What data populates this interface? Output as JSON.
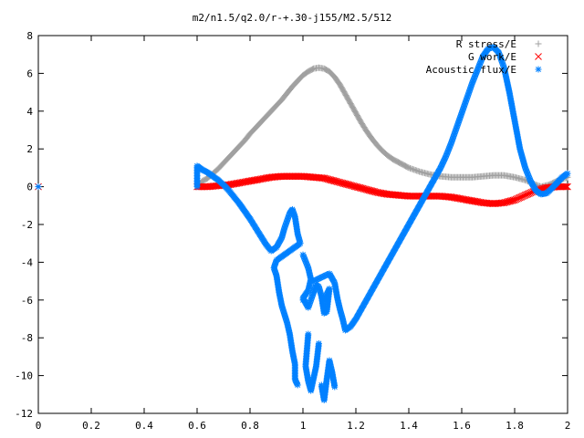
{
  "chart_data": {
    "type": "scatter",
    "title": "m2/n1.5/q2.0/r-+.30-j155/M2.5/512",
    "xlabel": "",
    "ylabel": "",
    "xlim": [
      0,
      2
    ],
    "ylim": [
      -12,
      8
    ],
    "xticks": [
      "0",
      "0.2",
      "0.4",
      "0.6",
      "0.8",
      "1",
      "1.2",
      "1.4",
      "1.6",
      "1.8",
      "2"
    ],
    "yticks": [
      "8",
      "6",
      "4",
      "2",
      "0",
      "-2",
      "-4",
      "-6",
      "-8",
      "-10",
      "-12"
    ],
    "grid": false,
    "legend_position": "top-right",
    "series": [
      {
        "name": "R stress/E",
        "marker": "+",
        "color": "#a0a0a0",
        "points": [
          [
            0.0,
            0.0
          ],
          [
            0.6,
            0.0
          ],
          [
            0.62,
            0.3
          ],
          [
            0.64,
            0.45
          ],
          [
            0.66,
            0.7
          ],
          [
            0.68,
            0.95
          ],
          [
            0.7,
            1.25
          ],
          [
            0.72,
            1.55
          ],
          [
            0.74,
            1.85
          ],
          [
            0.76,
            2.15
          ],
          [
            0.78,
            2.45
          ],
          [
            0.8,
            2.8
          ],
          [
            0.82,
            3.1
          ],
          [
            0.84,
            3.4
          ],
          [
            0.86,
            3.7
          ],
          [
            0.88,
            4.0
          ],
          [
            0.9,
            4.3
          ],
          [
            0.92,
            4.6
          ],
          [
            0.94,
            4.95
          ],
          [
            0.96,
            5.3
          ],
          [
            0.98,
            5.6
          ],
          [
            1.0,
            5.9
          ],
          [
            1.02,
            6.1
          ],
          [
            1.04,
            6.25
          ],
          [
            1.06,
            6.3
          ],
          [
            1.08,
            6.25
          ],
          [
            1.1,
            6.1
          ],
          [
            1.12,
            5.8
          ],
          [
            1.14,
            5.4
          ],
          [
            1.16,
            4.9
          ],
          [
            1.18,
            4.4
          ],
          [
            1.2,
            3.9
          ],
          [
            1.22,
            3.4
          ],
          [
            1.24,
            2.95
          ],
          [
            1.26,
            2.55
          ],
          [
            1.28,
            2.2
          ],
          [
            1.3,
            1.9
          ],
          [
            1.32,
            1.65
          ],
          [
            1.34,
            1.45
          ],
          [
            1.36,
            1.3
          ],
          [
            1.38,
            1.15
          ],
          [
            1.4,
            1.0
          ],
          [
            1.44,
            0.8
          ],
          [
            1.48,
            0.65
          ],
          [
            1.52,
            0.55
          ],
          [
            1.56,
            0.5
          ],
          [
            1.6,
            0.5
          ],
          [
            1.64,
            0.5
          ],
          [
            1.68,
            0.55
          ],
          [
            1.72,
            0.6
          ],
          [
            1.76,
            0.6
          ],
          [
            1.8,
            0.5
          ],
          [
            1.84,
            0.35
          ],
          [
            1.88,
            0.1
          ],
          [
            1.9,
            0.0
          ],
          [
            1.93,
            0.1
          ],
          [
            1.96,
            0.3
          ],
          [
            2.0,
            0.5
          ]
        ]
      },
      {
        "name": "G work/E",
        "marker": "x",
        "color": "#ff0000",
        "points": [
          [
            0.0,
            0.0
          ],
          [
            0.6,
            0.0
          ],
          [
            0.64,
            0.0
          ],
          [
            0.68,
            0.05
          ],
          [
            0.72,
            0.1
          ],
          [
            0.76,
            0.2
          ],
          [
            0.8,
            0.3
          ],
          [
            0.84,
            0.4
          ],
          [
            0.88,
            0.5
          ],
          [
            0.92,
            0.55
          ],
          [
            0.96,
            0.55
          ],
          [
            1.0,
            0.55
          ],
          [
            1.04,
            0.5
          ],
          [
            1.08,
            0.45
          ],
          [
            1.12,
            0.3
          ],
          [
            1.16,
            0.15
          ],
          [
            1.2,
            0.0
          ],
          [
            1.24,
            -0.15
          ],
          [
            1.28,
            -0.3
          ],
          [
            1.32,
            -0.4
          ],
          [
            1.36,
            -0.45
          ],
          [
            1.4,
            -0.5
          ],
          [
            1.44,
            -0.5
          ],
          [
            1.48,
            -0.5
          ],
          [
            1.52,
            -0.5
          ],
          [
            1.56,
            -0.55
          ],
          [
            1.6,
            -0.65
          ],
          [
            1.64,
            -0.75
          ],
          [
            1.68,
            -0.85
          ],
          [
            1.72,
            -0.9
          ],
          [
            1.76,
            -0.85
          ],
          [
            1.8,
            -0.7
          ],
          [
            1.84,
            -0.45
          ],
          [
            1.88,
            -0.2
          ],
          [
            1.92,
            -0.05
          ],
          [
            1.96,
            0.0
          ],
          [
            2.0,
            0.0
          ]
        ]
      },
      {
        "name": "Acoustic flux/E",
        "marker": "*",
        "color": "#0080ff",
        "points": [
          [
            0.0,
            0.0
          ],
          [
            0.6,
            0.0
          ],
          [
            0.6,
            1.1
          ],
          [
            0.62,
            0.9
          ],
          [
            0.64,
            0.75
          ],
          [
            0.66,
            0.55
          ],
          [
            0.68,
            0.35
          ],
          [
            0.7,
            0.1
          ],
          [
            0.72,
            -0.2
          ],
          [
            0.74,
            -0.55
          ],
          [
            0.76,
            -0.9
          ],
          [
            0.78,
            -1.3
          ],
          [
            0.8,
            -1.7
          ],
          [
            0.82,
            -2.15
          ],
          [
            0.84,
            -2.6
          ],
          [
            0.86,
            -3.05
          ],
          [
            0.88,
            -3.4
          ],
          [
            0.9,
            -3.2
          ],
          [
            0.92,
            -2.7
          ],
          [
            0.93,
            -2.2
          ],
          [
            0.95,
            -1.4
          ],
          [
            0.96,
            -1.2
          ],
          [
            0.97,
            -1.6
          ],
          [
            0.98,
            -2.5
          ],
          [
            0.99,
            -3.0
          ],
          [
            0.9,
            -3.9
          ],
          [
            0.89,
            -4.3
          ],
          [
            0.9,
            -4.7
          ],
          [
            0.91,
            -5.6
          ],
          [
            0.92,
            -6.3
          ],
          [
            0.94,
            -7.2
          ],
          [
            0.95,
            -7.8
          ],
          [
            0.96,
            -8.7
          ],
          [
            0.97,
            -9.4
          ],
          [
            0.97,
            -10.2
          ],
          [
            0.98,
            -10.5
          ],
          [
            1.0,
            -6.0
          ],
          [
            1.0,
            -3.6
          ],
          [
            1.02,
            -4.3
          ],
          [
            1.03,
            -4.9
          ],
          [
            1.02,
            -5.5
          ],
          [
            1.0,
            -5.9
          ],
          [
            1.02,
            -6.4
          ],
          [
            1.04,
            -5.6
          ],
          [
            1.05,
            -5.2
          ],
          [
            1.06,
            -5.3
          ],
          [
            1.07,
            -5.8
          ],
          [
            1.08,
            -6.7
          ],
          [
            1.09,
            -6.6
          ],
          [
            1.1,
            -5.4
          ],
          [
            1.08,
            -6.0
          ],
          [
            1.02,
            -7.8
          ],
          [
            1.01,
            -9.5
          ],
          [
            1.02,
            -10.3
          ],
          [
            1.03,
            -10.8
          ],
          [
            1.05,
            -9.5
          ],
          [
            1.06,
            -8.3
          ],
          [
            1.07,
            -10.5
          ],
          [
            1.08,
            -11.3
          ],
          [
            1.09,
            -10.2
          ],
          [
            1.1,
            -9.2
          ],
          [
            1.11,
            -9.8
          ],
          [
            1.12,
            -10.6
          ],
          [
            1.04,
            -5.0
          ],
          [
            1.1,
            -4.6
          ],
          [
            1.12,
            -5.1
          ],
          [
            1.13,
            -5.9
          ],
          [
            1.14,
            -6.5
          ],
          [
            1.15,
            -7.0
          ],
          [
            1.16,
            -7.6
          ],
          [
            1.18,
            -7.4
          ],
          [
            1.2,
            -7.0
          ],
          [
            1.22,
            -6.5
          ],
          [
            1.24,
            -6.0
          ],
          [
            1.26,
            -5.5
          ],
          [
            1.28,
            -5.0
          ],
          [
            1.3,
            -4.5
          ],
          [
            1.32,
            -4.0
          ],
          [
            1.34,
            -3.5
          ],
          [
            1.36,
            -3.0
          ],
          [
            1.38,
            -2.5
          ],
          [
            1.4,
            -2.0
          ],
          [
            1.42,
            -1.5
          ],
          [
            1.44,
            -1.0
          ],
          [
            1.46,
            -0.5
          ],
          [
            1.48,
            0.0
          ],
          [
            1.5,
            0.5
          ],
          [
            1.52,
            1.0
          ],
          [
            1.54,
            1.6
          ],
          [
            1.56,
            2.3
          ],
          [
            1.58,
            3.1
          ],
          [
            1.6,
            3.9
          ],
          [
            1.62,
            4.7
          ],
          [
            1.64,
            5.5
          ],
          [
            1.66,
            6.2
          ],
          [
            1.68,
            6.9
          ],
          [
            1.7,
            7.3
          ],
          [
            1.72,
            7.4
          ],
          [
            1.74,
            7.1
          ],
          [
            1.76,
            6.3
          ],
          [
            1.78,
            5.0
          ],
          [
            1.8,
            3.5
          ],
          [
            1.82,
            2.0
          ],
          [
            1.84,
            1.0
          ],
          [
            1.86,
            0.3
          ],
          [
            1.88,
            -0.2
          ],
          [
            1.9,
            -0.4
          ],
          [
            1.92,
            -0.35
          ],
          [
            1.94,
            -0.1
          ],
          [
            1.96,
            0.2
          ],
          [
            1.98,
            0.5
          ],
          [
            2.0,
            0.7
          ]
        ]
      }
    ]
  }
}
